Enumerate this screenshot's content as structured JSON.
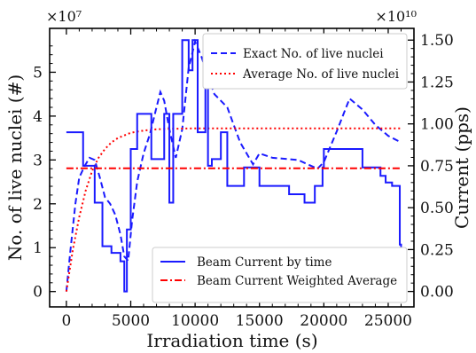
{
  "chart_data": {
    "type": "line",
    "x_axis": {
      "label": "Irradiation time (s)",
      "range": [
        -1300,
        27000
      ],
      "ticks": [
        0,
        5000,
        10000,
        15000,
        20000,
        25000
      ],
      "tick_labels": [
        "0",
        "5000",
        "10000",
        "15000",
        "20000",
        "25000"
      ]
    },
    "y_left": {
      "label": "No. of live nuclei (#)",
      "multiplier": "×10⁷",
      "range": [
        -3500000,
        60000000
      ],
      "ticks": [
        0,
        10000000,
        20000000,
        30000000,
        40000000,
        50000000
      ],
      "tick_labels": [
        "0",
        "1",
        "2",
        "3",
        "4",
        "5"
      ]
    },
    "y_right": {
      "label": "Current (pps)",
      "multiplier": "×10¹⁰",
      "range": [
        -9200000000,
        157000000000
      ],
      "ticks": [
        0,
        25000000000,
        50000000000,
        75000000000,
        100000000000,
        125000000000,
        150000000000
      ],
      "tick_labels": [
        "0.00",
        "0.25",
        "0.50",
        "0.75",
        "1.00",
        "1.25",
        "1.50"
      ]
    },
    "legend_top": {
      "placement": "top-right",
      "entries": [
        "Exact No. of live nuclei",
        "Average No. of live nuclei"
      ]
    },
    "legend_bottom": {
      "placement": "bottom-right",
      "entries": [
        "Beam Current by time",
        "Beam Current Weighted Average"
      ]
    },
    "series": [
      {
        "name": "Exact No. of live nuclei",
        "axis": "left",
        "style": "dashed",
        "color": "#1a1aff",
        "x": [
          0,
          300,
          700,
          1000,
          1400,
          1800,
          2200,
          2600,
          3000,
          3400,
          3800,
          4200,
          4500,
          4800,
          5100,
          5500,
          6000,
          6500,
          7000,
          7300,
          7600,
          8000,
          8500,
          9000,
          9500,
          10000,
          10500,
          11000,
          11500,
          12500,
          13500,
          14500,
          15000,
          16000,
          18000,
          19500,
          20000,
          21000,
          22000,
          23000,
          24000,
          25000,
          26000
        ],
        "y": [
          0,
          9000000,
          20000000,
          26000000,
          28500000,
          30500000,
          30000000,
          26000000,
          21500000,
          20000000,
          17500000,
          13000000,
          8000000,
          7000000,
          16000000,
          25000000,
          31500000,
          36000000,
          42000000,
          45500000,
          43500000,
          37000000,
          30500000,
          37000000,
          51000000,
          57000000,
          53500000,
          49000000,
          45000000,
          42000000,
          34000000,
          29000000,
          31500000,
          30500000,
          30000000,
          28000000,
          29500000,
          36500000,
          44000000,
          41500000,
          38000000,
          35500000,
          34000000
        ]
      },
      {
        "name": "Average No. of live nuclei",
        "axis": "left",
        "style": "dotted",
        "color": "#ff0000",
        "x": [
          0,
          500,
          1000,
          1500,
          2000,
          2500,
          3000,
          3500,
          4000,
          5000,
          6000,
          7000,
          8000,
          9000,
          10000,
          26000
        ],
        "y": [
          0,
          9500000,
          17000000,
          23000000,
          27500000,
          30500000,
          32500000,
          34000000,
          35000000,
          36200000,
          36700000,
          37000000,
          37100000,
          37150000,
          37200000,
          37200000
        ]
      },
      {
        "name": "Beam Current by time",
        "axis": "right",
        "style": "step",
        "color": "#1a1aff",
        "x": [
          0,
          1300,
          1300,
          2200,
          2200,
          2800,
          2800,
          3500,
          3500,
          4200,
          4200,
          4500,
          4500,
          4700,
          4700,
          5000,
          5000,
          5500,
          5500,
          6600,
          6600,
          7600,
          7600,
          8000,
          8000,
          8300,
          8300,
          9000,
          9000,
          9500,
          9500,
          9800,
          9800,
          10200,
          10200,
          10800,
          10800,
          11000,
          11000,
          11300,
          11300,
          12000,
          12000,
          12500,
          12500,
          13800,
          13800,
          15000,
          15000,
          17300,
          17300,
          18500,
          18500,
          19300,
          19300,
          19900,
          19900,
          20000,
          20000,
          23000,
          23000,
          24400,
          24400,
          24800,
          24800,
          25300,
          25300,
          25900,
          25900,
          26000,
          26000
        ],
        "y": [
          95000000000,
          95000000000,
          75000000000,
          75000000000,
          53000000000,
          53000000000,
          27000000000,
          27000000000,
          23000000000,
          23000000000,
          18000000000,
          18000000000,
          0,
          0,
          37000000000,
          37000000000,
          85000000000,
          85000000000,
          106000000000,
          106000000000,
          79000000000,
          79000000000,
          106000000000,
          106000000000,
          53000000000,
          53000000000,
          106000000000,
          106000000000,
          150000000000,
          150000000000,
          132000000000,
          132000000000,
          150000000000,
          150000000000,
          95000000000,
          95000000000,
          137000000000,
          137000000000,
          75000000000,
          75000000000,
          79000000000,
          79000000000,
          95000000000,
          95000000000,
          63000000000,
          63000000000,
          74000000000,
          74000000000,
          63000000000,
          63000000000,
          58000000000,
          58000000000,
          53000000000,
          53000000000,
          63000000000,
          63000000000,
          74000000000,
          74000000000,
          85000000000,
          85000000000,
          74000000000,
          74000000000,
          69000000000,
          69000000000,
          65000000000,
          65000000000,
          63000000000,
          63000000000,
          28000000000,
          28000000000,
          0
        ]
      },
      {
        "name": "Beam Current Weighted Average",
        "axis": "right",
        "style": "dashdot",
        "color": "#ff0000",
        "x": [
          0,
          26000
        ],
        "y": [
          73500000000,
          73500000000
        ]
      }
    ]
  }
}
